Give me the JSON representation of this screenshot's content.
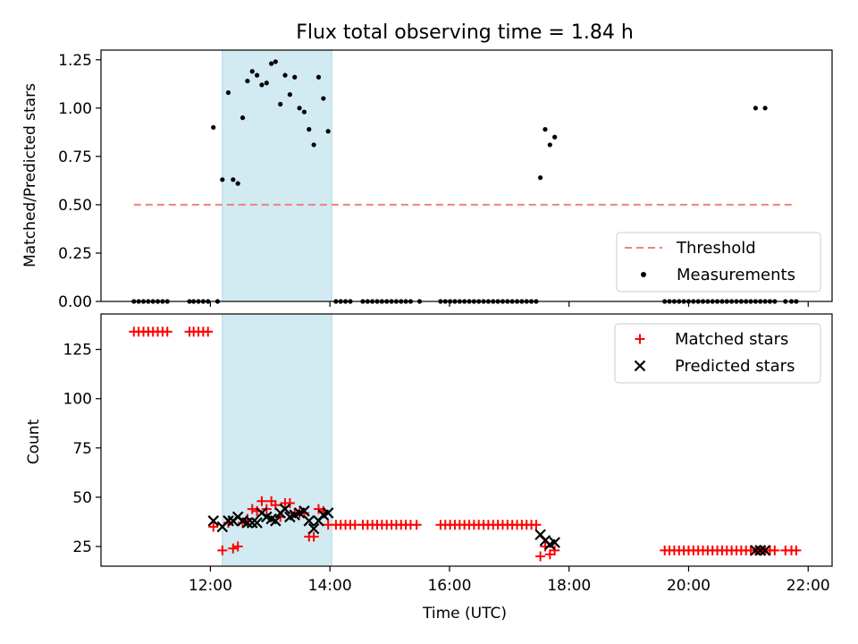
{
  "colors": {
    "threshold": "#f08080",
    "measurements": "#000000",
    "matched": "#ff0000",
    "predicted": "#000000",
    "highlight": "#add8e6"
  },
  "chart_data": [
    {
      "type": "scatter",
      "title": "Flux total observing time = 1.84 h",
      "xlabel": "",
      "ylabel": "Matched/Predicted stars",
      "x_unit": "hours (UTC)",
      "xlim": [
        10.17,
        22.4
      ],
      "ylim": [
        0,
        1.3
      ],
      "yticks": [
        "0.00",
        "0.25",
        "0.50",
        "0.75",
        "1.00",
        "1.25"
      ],
      "xticks": [
        12,
        14,
        16,
        18,
        20,
        22
      ],
      "grid": false,
      "highlight_span": [
        12.2,
        14.03
      ],
      "legend": {
        "position": "lower-right",
        "entries": [
          {
            "label": "Threshold",
            "style": "dashed-line"
          },
          {
            "label": "Measurements",
            "style": "dot"
          }
        ]
      },
      "threshold": {
        "name": "Threshold",
        "y": 0.5,
        "x_range": [
          10.72,
          21.8
        ]
      },
      "measurements": {
        "name": "Measurements",
        "points": [
          [
            10.72,
            0
          ],
          [
            10.8,
            0
          ],
          [
            10.88,
            0
          ],
          [
            10.96,
            0
          ],
          [
            11.04,
            0
          ],
          [
            11.12,
            0
          ],
          [
            11.2,
            0
          ],
          [
            11.28,
            0
          ],
          [
            11.65,
            0
          ],
          [
            11.72,
            0
          ],
          [
            11.8,
            0
          ],
          [
            11.88,
            0
          ],
          [
            11.96,
            0
          ],
          [
            12.12,
            0
          ],
          [
            12.05,
            0.9
          ],
          [
            12.2,
            0.63
          ],
          [
            12.3,
            1.08
          ],
          [
            12.38,
            0.63
          ],
          [
            12.46,
            0.61
          ],
          [
            12.54,
            0.95
          ],
          [
            12.62,
            1.14
          ],
          [
            12.7,
            1.19
          ],
          [
            12.78,
            1.17
          ],
          [
            12.86,
            1.12
          ],
          [
            12.94,
            1.13
          ],
          [
            13.02,
            1.23
          ],
          [
            13.09,
            1.24
          ],
          [
            13.17,
            1.02
          ],
          [
            13.25,
            1.17
          ],
          [
            13.33,
            1.07
          ],
          [
            13.41,
            1.16
          ],
          [
            13.49,
            1.0
          ],
          [
            13.57,
            0.98
          ],
          [
            13.65,
            0.89
          ],
          [
            13.73,
            0.81
          ],
          [
            13.81,
            1.16
          ],
          [
            13.89,
            1.05
          ],
          [
            13.97,
            0.88
          ],
          [
            14.1,
            0
          ],
          [
            14.18,
            0
          ],
          [
            14.26,
            0
          ],
          [
            14.34,
            0
          ],
          [
            14.55,
            0
          ],
          [
            14.63,
            0
          ],
          [
            14.71,
            0
          ],
          [
            14.79,
            0
          ],
          [
            14.87,
            0
          ],
          [
            14.95,
            0
          ],
          [
            15.03,
            0
          ],
          [
            15.11,
            0
          ],
          [
            15.19,
            0
          ],
          [
            15.27,
            0
          ],
          [
            15.35,
            0
          ],
          [
            15.5,
            0
          ],
          [
            15.85,
            0
          ],
          [
            15.93,
            0
          ],
          [
            16.01,
            0
          ],
          [
            16.09,
            0
          ],
          [
            16.17,
            0
          ],
          [
            16.25,
            0
          ],
          [
            16.33,
            0
          ],
          [
            16.41,
            0
          ],
          [
            16.49,
            0
          ],
          [
            16.57,
            0
          ],
          [
            16.65,
            0
          ],
          [
            16.73,
            0
          ],
          [
            16.81,
            0
          ],
          [
            16.89,
            0
          ],
          [
            16.97,
            0
          ],
          [
            17.05,
            0
          ],
          [
            17.13,
            0
          ],
          [
            17.21,
            0
          ],
          [
            17.29,
            0
          ],
          [
            17.37,
            0
          ],
          [
            17.45,
            0
          ],
          [
            17.52,
            0.64
          ],
          [
            17.6,
            0.89
          ],
          [
            17.68,
            0.81
          ],
          [
            17.76,
            0.85
          ],
          [
            19.6,
            0
          ],
          [
            19.68,
            0
          ],
          [
            19.76,
            0
          ],
          [
            19.84,
            0
          ],
          [
            19.92,
            0
          ],
          [
            20.0,
            0
          ],
          [
            20.08,
            0
          ],
          [
            20.16,
            0
          ],
          [
            20.24,
            0
          ],
          [
            20.32,
            0
          ],
          [
            20.4,
            0
          ],
          [
            20.48,
            0
          ],
          [
            20.56,
            0
          ],
          [
            20.64,
            0
          ],
          [
            20.72,
            0
          ],
          [
            20.8,
            0
          ],
          [
            20.88,
            0
          ],
          [
            20.96,
            0
          ],
          [
            21.04,
            0
          ],
          [
            21.12,
            0
          ],
          [
            21.2,
            0
          ],
          [
            21.28,
            0
          ],
          [
            21.36,
            0
          ],
          [
            21.44,
            0
          ],
          [
            21.62,
            0
          ],
          [
            21.72,
            0
          ],
          [
            21.8,
            0
          ],
          [
            21.12,
            1.0
          ],
          [
            21.28,
            1.0
          ]
        ]
      }
    },
    {
      "type": "scatter",
      "title": "",
      "xlabel": "Time (UTC)",
      "ylabel": "Count",
      "x_unit": "hours (UTC)",
      "xlim": [
        10.17,
        22.4
      ],
      "ylim": [
        15,
        143
      ],
      "yticks": [
        "25",
        "50",
        "75",
        "100",
        "125"
      ],
      "xticks": [
        12,
        14,
        16,
        18,
        20,
        22
      ],
      "xticklabels": [
        "12:00",
        "14:00",
        "16:00",
        "18:00",
        "20:00",
        "22:00"
      ],
      "grid": false,
      "highlight_span": [
        12.2,
        14.03
      ],
      "legend": {
        "position": "upper-right",
        "entries": [
          {
            "label": "Matched stars",
            "style": "plus"
          },
          {
            "label": "Predicted stars",
            "style": "x"
          }
        ]
      },
      "series": [
        {
          "name": "Matched stars",
          "marker": "plus",
          "points": [
            [
              10.72,
              134
            ],
            [
              10.8,
              134
            ],
            [
              10.88,
              134
            ],
            [
              10.96,
              134
            ],
            [
              11.04,
              134
            ],
            [
              11.12,
              134
            ],
            [
              11.2,
              134
            ],
            [
              11.28,
              134
            ],
            [
              11.65,
              134
            ],
            [
              11.72,
              134
            ],
            [
              11.8,
              134
            ],
            [
              11.88,
              134
            ],
            [
              11.96,
              134
            ],
            [
              12.05,
              35
            ],
            [
              12.2,
              23
            ],
            [
              12.3,
              37
            ],
            [
              12.38,
              24
            ],
            [
              12.46,
              25
            ],
            [
              12.54,
              37
            ],
            [
              12.62,
              39
            ],
            [
              12.7,
              44
            ],
            [
              12.78,
              43
            ],
            [
              12.86,
              48
            ],
            [
              12.94,
              44
            ],
            [
              13.02,
              48
            ],
            [
              13.09,
              46
            ],
            [
              13.17,
              40
            ],
            [
              13.25,
              47
            ],
            [
              13.33,
              47
            ],
            [
              13.41,
              42
            ],
            [
              13.49,
              42
            ],
            [
              13.57,
              42
            ],
            [
              13.65,
              30
            ],
            [
              13.73,
              30
            ],
            [
              13.81,
              44
            ],
            [
              13.89,
              43
            ],
            [
              13.97,
              36
            ],
            [
              14.1,
              36
            ],
            [
              14.18,
              36
            ],
            [
              14.26,
              36
            ],
            [
              14.34,
              36
            ],
            [
              14.42,
              36
            ],
            [
              14.55,
              36
            ],
            [
              14.63,
              36
            ],
            [
              14.71,
              36
            ],
            [
              14.79,
              36
            ],
            [
              14.87,
              36
            ],
            [
              14.95,
              36
            ],
            [
              15.03,
              36
            ],
            [
              15.11,
              36
            ],
            [
              15.19,
              36
            ],
            [
              15.27,
              36
            ],
            [
              15.35,
              36
            ],
            [
              15.45,
              36
            ],
            [
              15.85,
              36
            ],
            [
              15.93,
              36
            ],
            [
              16.01,
              36
            ],
            [
              16.09,
              36
            ],
            [
              16.17,
              36
            ],
            [
              16.25,
              36
            ],
            [
              16.33,
              36
            ],
            [
              16.41,
              36
            ],
            [
              16.49,
              36
            ],
            [
              16.57,
              36
            ],
            [
              16.65,
              36
            ],
            [
              16.73,
              36
            ],
            [
              16.81,
              36
            ],
            [
              16.89,
              36
            ],
            [
              16.97,
              36
            ],
            [
              17.05,
              36
            ],
            [
              17.13,
              36
            ],
            [
              17.21,
              36
            ],
            [
              17.29,
              36
            ],
            [
              17.37,
              36
            ],
            [
              17.45,
              36
            ],
            [
              17.52,
              20
            ],
            [
              17.6,
              25
            ],
            [
              17.68,
              21
            ],
            [
              17.76,
              23
            ],
            [
              19.6,
              23
            ],
            [
              19.68,
              23
            ],
            [
              19.76,
              23
            ],
            [
              19.84,
              23
            ],
            [
              19.92,
              23
            ],
            [
              20.0,
              23
            ],
            [
              20.08,
              23
            ],
            [
              20.16,
              23
            ],
            [
              20.24,
              23
            ],
            [
              20.32,
              23
            ],
            [
              20.4,
              23
            ],
            [
              20.48,
              23
            ],
            [
              20.56,
              23
            ],
            [
              20.64,
              23
            ],
            [
              20.72,
              23
            ],
            [
              20.8,
              23
            ],
            [
              20.88,
              23
            ],
            [
              20.96,
              23
            ],
            [
              21.04,
              23
            ],
            [
              21.12,
              23
            ],
            [
              21.2,
              23
            ],
            [
              21.28,
              23
            ],
            [
              21.36,
              23
            ],
            [
              21.44,
              23
            ],
            [
              21.62,
              23
            ],
            [
              21.72,
              23
            ],
            [
              21.8,
              23
            ]
          ]
        },
        {
          "name": "Predicted stars",
          "marker": "x",
          "points": [
            [
              12.05,
              38
            ],
            [
              12.2,
              35
            ],
            [
              12.3,
              38
            ],
            [
              12.38,
              38
            ],
            [
              12.46,
              40
            ],
            [
              12.54,
              38
            ],
            [
              12.62,
              37
            ],
            [
              12.7,
              37
            ],
            [
              12.78,
              37
            ],
            [
              12.86,
              42
            ],
            [
              12.94,
              40
            ],
            [
              13.02,
              39
            ],
            [
              13.09,
              38
            ],
            [
              13.17,
              42
            ],
            [
              13.25,
              44
            ],
            [
              13.33,
              40
            ],
            [
              13.41,
              41
            ],
            [
              13.49,
              42
            ],
            [
              13.57,
              43
            ],
            [
              13.65,
              38
            ],
            [
              13.73,
              34
            ],
            [
              13.81,
              38
            ],
            [
              13.89,
              41
            ],
            [
              13.97,
              42
            ],
            [
              17.52,
              31
            ],
            [
              17.6,
              28
            ],
            [
              17.68,
              26
            ],
            [
              17.76,
              27
            ],
            [
              21.12,
              23
            ],
            [
              21.2,
              23
            ],
            [
              21.28,
              23
            ]
          ]
        }
      ]
    }
  ]
}
